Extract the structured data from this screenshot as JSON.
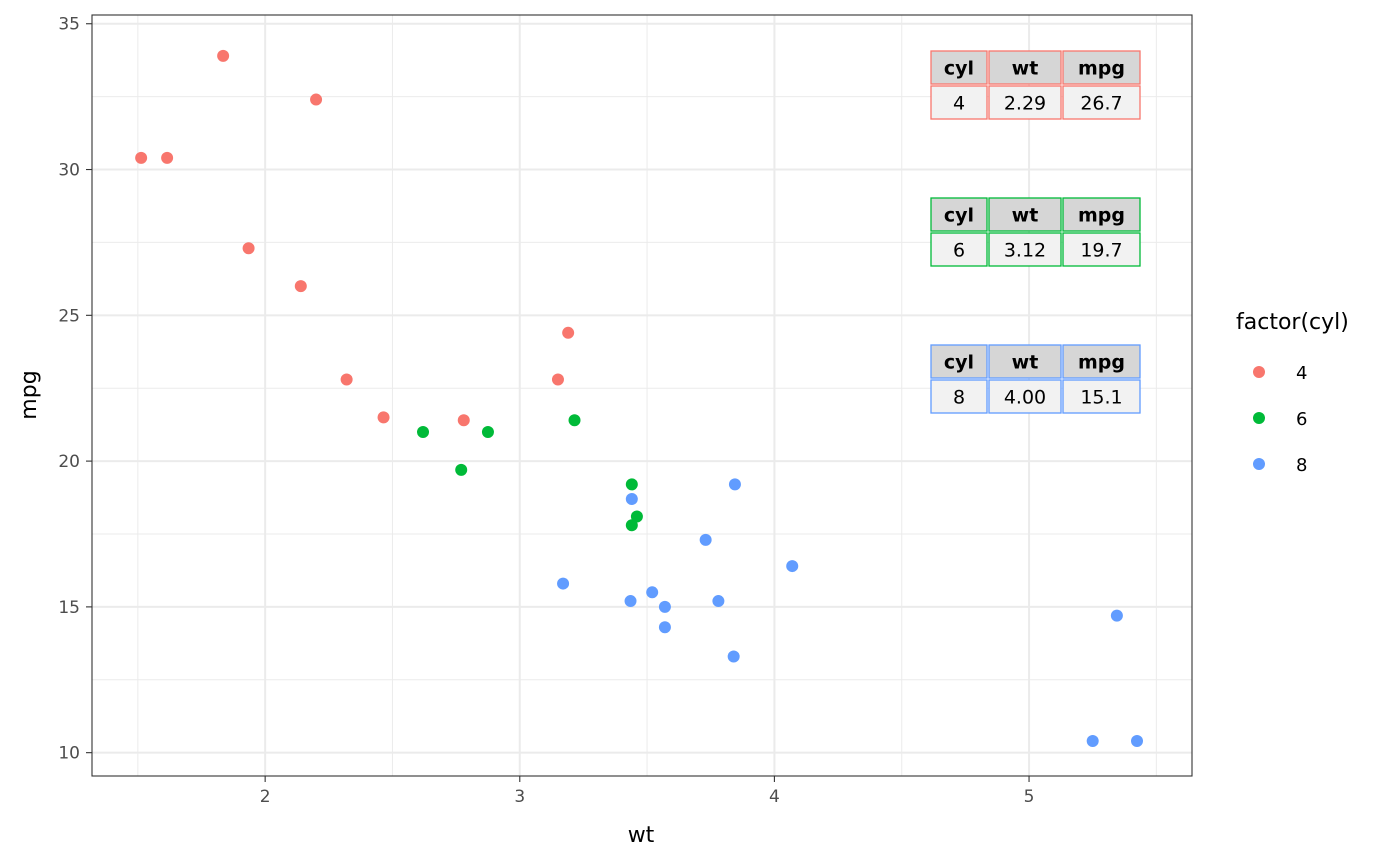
{
  "chart_data": {
    "type": "scatter",
    "xlabel": "wt",
    "ylabel": "mpg",
    "xlim": [
      1.32,
      5.64
    ],
    "ylim": [
      9.2,
      35.3
    ],
    "x_ticks": [
      2,
      3,
      4,
      5
    ],
    "y_ticks": [
      10,
      15,
      20,
      25,
      30,
      35
    ],
    "grid": true,
    "legend": {
      "title": "factor(cyl)",
      "position": "right",
      "entries": [
        "4",
        "6",
        "8"
      ]
    },
    "series": [
      {
        "name": "4",
        "color": "#F8766D",
        "points": [
          [
            2.32,
            22.8
          ],
          [
            3.19,
            24.4
          ],
          [
            3.15,
            22.8
          ],
          [
            2.2,
            32.4
          ],
          [
            1.615,
            30.4
          ],
          [
            1.835,
            33.9
          ],
          [
            2.465,
            21.5
          ],
          [
            1.935,
            27.3
          ],
          [
            2.14,
            26.0
          ],
          [
            1.513,
            30.4
          ],
          [
            2.78,
            21.4
          ]
        ]
      },
      {
        "name": "6",
        "color": "#00BA38",
        "points": [
          [
            2.62,
            21.0
          ],
          [
            2.875,
            21.0
          ],
          [
            3.215,
            21.4
          ],
          [
            3.46,
            18.1
          ],
          [
            3.44,
            19.2
          ],
          [
            3.44,
            17.8
          ],
          [
            2.77,
            19.7
          ]
        ]
      },
      {
        "name": "8",
        "color": "#619CFF",
        "points": [
          [
            3.44,
            18.7
          ],
          [
            3.57,
            14.3
          ],
          [
            4.07,
            16.4
          ],
          [
            3.73,
            17.3
          ],
          [
            3.78,
            15.2
          ],
          [
            5.25,
            10.4
          ],
          [
            5.424,
            10.4
          ],
          [
            5.345,
            14.7
          ],
          [
            3.52,
            15.5
          ],
          [
            3.435,
            15.2
          ],
          [
            3.84,
            13.3
          ],
          [
            3.845,
            19.2
          ],
          [
            3.17,
            15.8
          ],
          [
            3.57,
            15.0
          ]
        ]
      }
    ],
    "tables": [
      {
        "headers": [
          "cyl",
          "wt",
          "mpg"
        ],
        "row": [
          "4",
          "2.29",
          "26.7"
        ],
        "color": "#F8766D"
      },
      {
        "headers": [
          "cyl",
          "wt",
          "mpg"
        ],
        "row": [
          "6",
          "3.12",
          "19.7"
        ],
        "color": "#00BA38"
      },
      {
        "headers": [
          "cyl",
          "wt",
          "mpg"
        ],
        "row": [
          "8",
          "4.00",
          "15.1"
        ],
        "color": "#619CFF"
      }
    ]
  }
}
